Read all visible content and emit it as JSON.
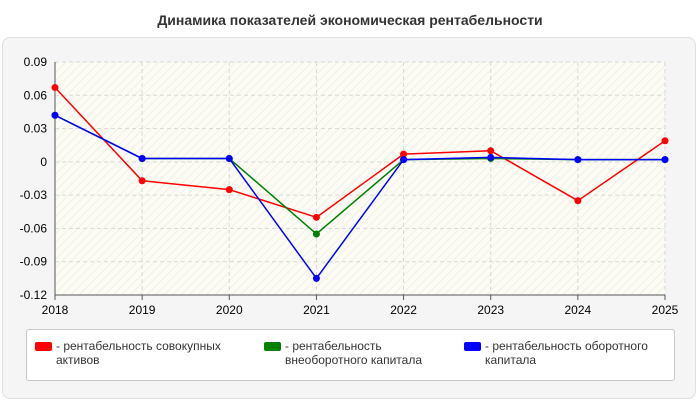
{
  "title": "Динамика показателей экономическая рентабельности",
  "chart_data": {
    "type": "line",
    "title": "Динамика показателей экономическая рентабельности",
    "x": [
      "2018",
      "2019",
      "2020",
      "2021",
      "2022",
      "2023",
      "2024",
      "2025"
    ],
    "ylim": [
      -0.12,
      0.09
    ],
    "yticks": [
      "0.09",
      "0.06",
      "0.03",
      "0",
      "-0.03",
      "-0.06",
      "-0.09",
      "-0.12"
    ],
    "grid": true,
    "legend_position": "bottom",
    "series": [
      {
        "name": "- рентабельность совокупных активов",
        "color": "#ff0000",
        "values": [
          0.067,
          -0.017,
          -0.025,
          -0.05,
          0.007,
          0.01,
          -0.035,
          0.019
        ]
      },
      {
        "name": "- рентабельность внеоборотного капитала",
        "color": "#008000",
        "values": [
          0.042,
          0.003,
          0.003,
          -0.065,
          0.002,
          0.003,
          0.002,
          0.002
        ]
      },
      {
        "name": "- рентабельность оборотного капитала",
        "color": "#0000ff",
        "values": [
          0.042,
          0.003,
          0.003,
          -0.105,
          0.002,
          0.004,
          0.002,
          0.002
        ]
      }
    ]
  }
}
